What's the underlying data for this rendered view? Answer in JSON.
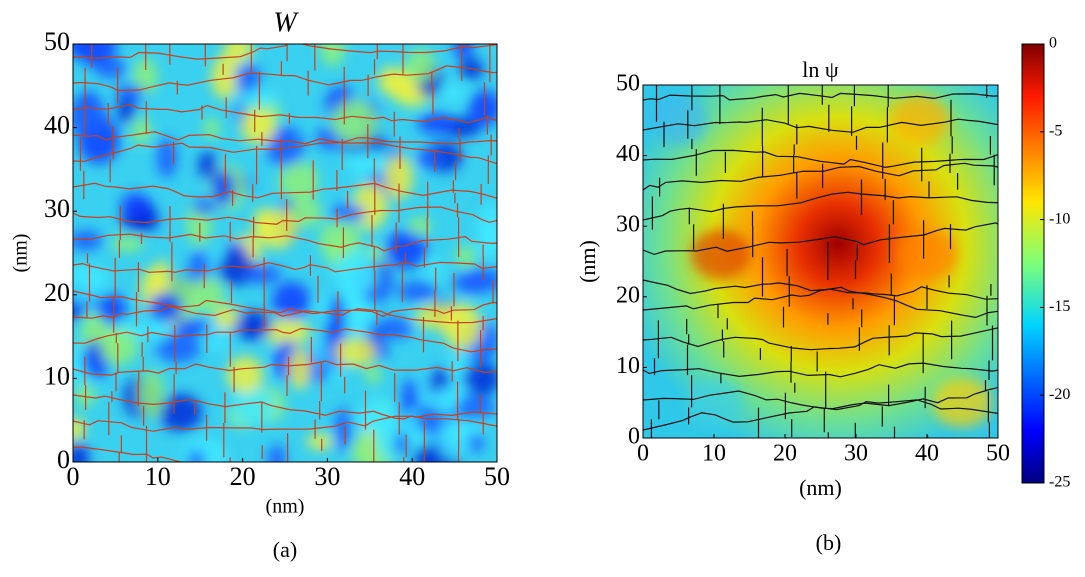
{
  "chart_data": [
    {
      "type": "heatmap",
      "title": "W",
      "xlabel": "(nm)",
      "ylabel": "(nm)",
      "caption": "(a)",
      "xlim": [
        0,
        50
      ],
      "ylim": [
        0,
        50
      ],
      "xticks": [
        0,
        10,
        20,
        30,
        40,
        50
      ],
      "yticks": [
        0,
        10,
        20,
        30,
        40,
        50
      ]
    },
    {
      "type": "heatmap",
      "title": "ln ψ",
      "xlabel": "(nm)",
      "ylabel": "(nm)",
      "caption": "(b)",
      "xlim": [
        0,
        50
      ],
      "ylim": [
        0,
        50
      ],
      "xticks": [
        0,
        10,
        20,
        30,
        40,
        50
      ],
      "yticks": [
        0,
        10,
        20,
        30,
        40,
        50
      ],
      "colorbar": {
        "clim": [
          -25,
          0
        ],
        "ticks": [
          0,
          -5,
          -10,
          -15,
          -20,
          -25
        ]
      }
    }
  ]
}
